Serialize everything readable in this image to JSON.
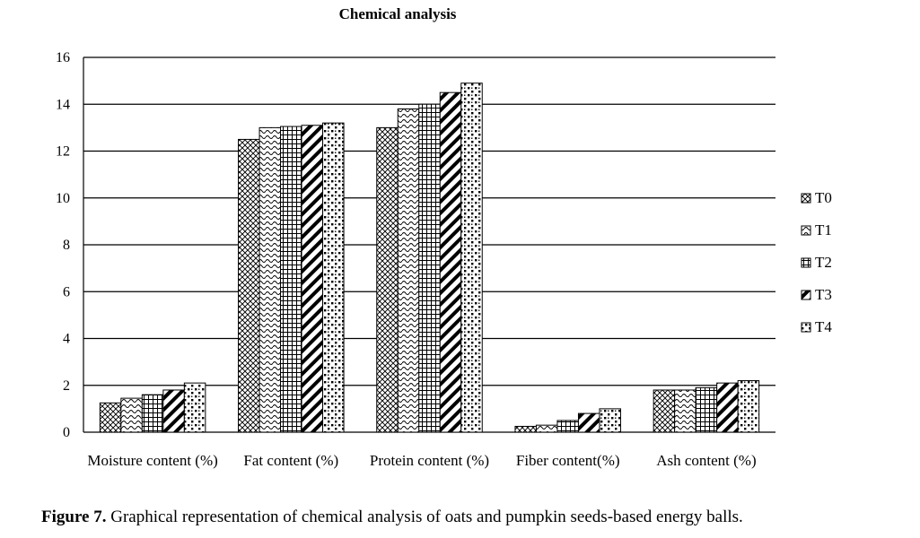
{
  "chart_data": {
    "type": "bar",
    "title": "Chemical analysis",
    "xlabel": "",
    "ylabel": "",
    "categories": [
      "Moisture content (%)",
      "Fat content (%)",
      "Protein content (%)",
      "Fiber content(%)",
      "Ash content (%)"
    ],
    "y_ticks": [
      "16",
      "14",
      "12",
      "10",
      "8",
      "6",
      "4",
      "2",
      "0"
    ],
    "ylim": [
      0,
      16
    ],
    "series": [
      {
        "name": "T0",
        "values": [
          1.25,
          12.5,
          13.0,
          0.25,
          1.8
        ]
      },
      {
        "name": "T1",
        "values": [
          1.45,
          13.0,
          13.8,
          0.3,
          1.8
        ]
      },
      {
        "name": "T2",
        "values": [
          1.6,
          13.05,
          14.0,
          0.5,
          1.9
        ]
      },
      {
        "name": "T3",
        "values": [
          1.8,
          13.1,
          14.5,
          0.8,
          2.1
        ]
      },
      {
        "name": "T4",
        "values": [
          2.1,
          13.2,
          14.9,
          1.0,
          2.2
        ]
      }
    ],
    "legend_position": "right",
    "grid": true
  },
  "caption": {
    "label": "Figure 7.",
    "text": " Graphical representation of chemical analysis of oats and pumpkin seeds-based energy balls."
  }
}
